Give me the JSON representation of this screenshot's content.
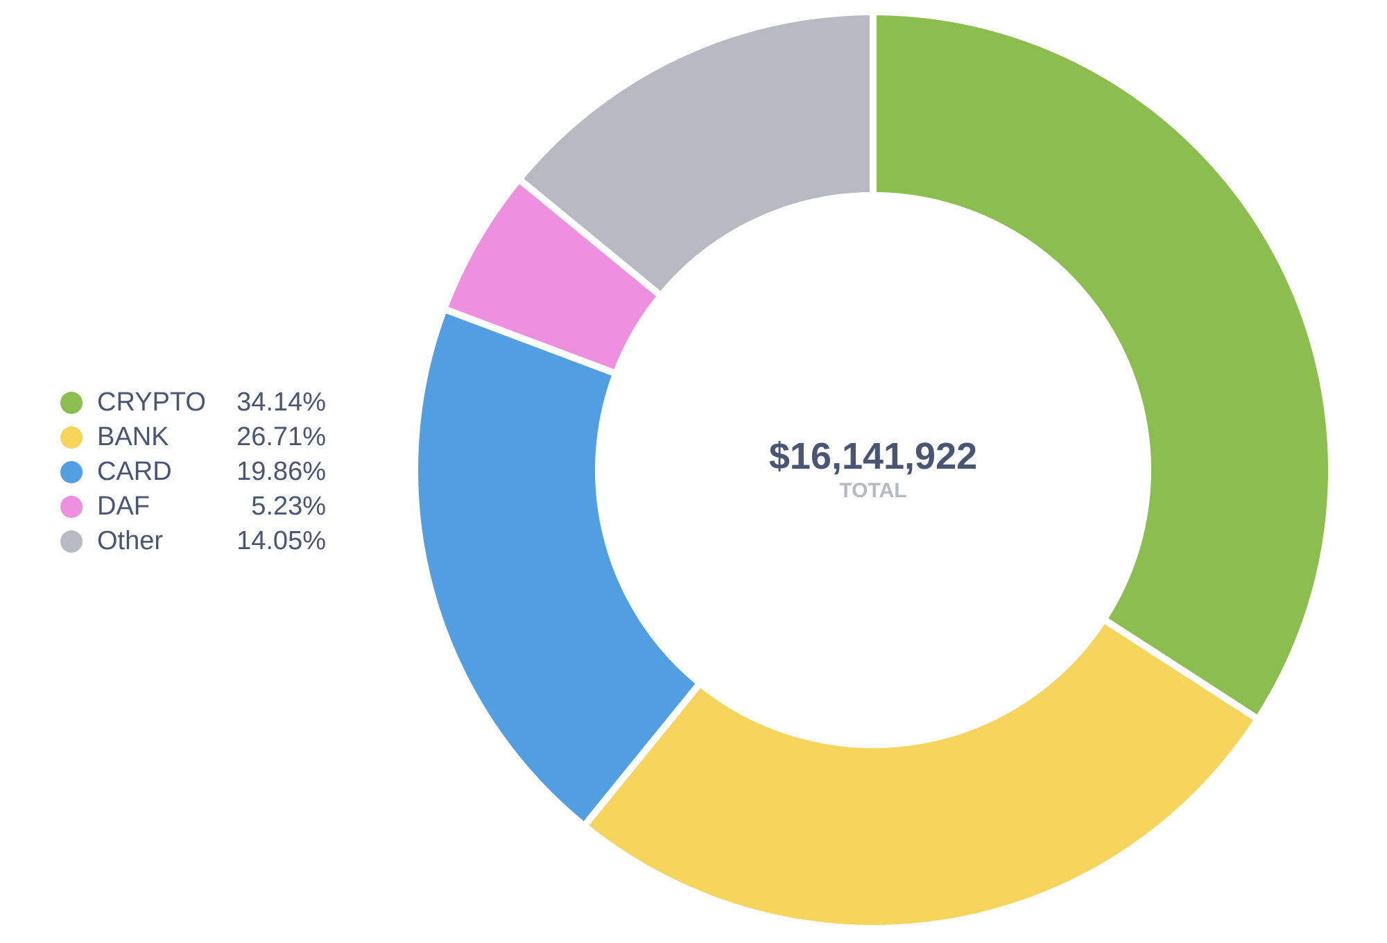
{
  "chart_data": {
    "type": "pie",
    "donut": true,
    "total_value": "$16,141,922",
    "total_caption": "TOTAL",
    "legend_placement": "left",
    "categories": [
      "CRYPTO",
      "BANK",
      "CARD",
      "DAF",
      "Other"
    ],
    "values": [
      34.14,
      26.71,
      19.86,
      5.23,
      14.05
    ],
    "value_labels": [
      "34.14%",
      "26.71%",
      "19.86%",
      "5.23%",
      "14.05%"
    ],
    "colors": [
      "#8bbd4f",
      "#f7d45c",
      "#519ee1",
      "#ee8fe0",
      "#b7bac2"
    ]
  }
}
